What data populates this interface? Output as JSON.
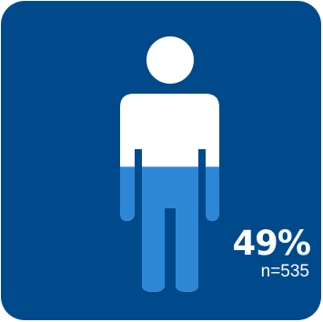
{
  "chart_data": {
    "type": "pictogram",
    "value_percent": 49,
    "value_label": "49%",
    "sample_label": "n=535",
    "colors": {
      "background": "#004a8c",
      "empty": "#ffffff",
      "filled": "#2e86d6"
    },
    "icon": "person-icon"
  }
}
